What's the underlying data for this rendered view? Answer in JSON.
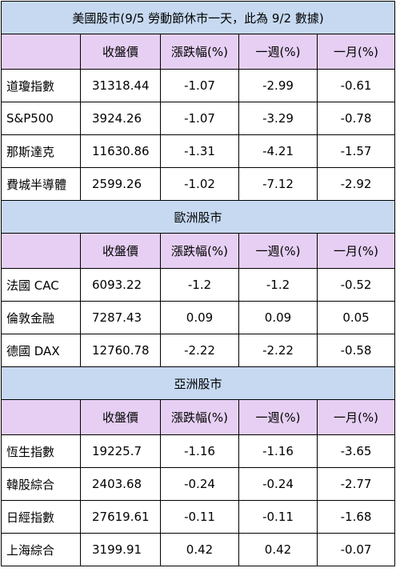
{
  "headers": [
    "",
    "收盤價",
    "漲跌幅(%)",
    "一週(%)",
    "一月(%)"
  ],
  "sections": [
    {
      "title": "美國股市(9/5 勞動節休市一天，此為 9/2 數據)",
      "rows": [
        {
          "name": "道瓊指數",
          "close": "31318.44",
          "change": "-1.07",
          "week": "-2.99",
          "month": "-0.61"
        },
        {
          "name": "S&P500",
          "close": "3924.26",
          "change": "-1.07",
          "week": "-3.29",
          "month": "-0.78"
        },
        {
          "name": "那斯達克",
          "close": "11630.86",
          "change": "-1.31",
          "week": "-4.21",
          "month": "-1.57"
        },
        {
          "name": "費城半導體",
          "close": "2599.26",
          "change": "-1.02",
          "week": "-7.12",
          "month": "-2.92"
        }
      ]
    },
    {
      "title": "歐洲股市",
      "rows": [
        {
          "name": "法國 CAC",
          "close": "6093.22",
          "change": "-1.2",
          "week": "-1.2",
          "month": "-0.52"
        },
        {
          "name": "倫敦金融",
          "close": "7287.43",
          "change": "0.09",
          "week": "0.09",
          "month": "0.05"
        },
        {
          "name": "德國 DAX",
          "close": "12760.78",
          "change": "-2.22",
          "week": "-2.22",
          "month": "-0.58"
        }
      ]
    },
    {
      "title": "亞洲股市",
      "rows": [
        {
          "name": "恆生指數",
          "close": "19225.7",
          "change": "-1.16",
          "week": "-1.16",
          "month": "-3.65"
        },
        {
          "name": "韓股綜合",
          "close": "2403.68",
          "change": "-0.24",
          "week": "-0.24",
          "month": "-2.77"
        },
        {
          "name": "日經指數",
          "close": "27619.61",
          "change": "-0.11",
          "week": "-0.11",
          "month": "-1.68"
        },
        {
          "name": "上海綜合",
          "close": "3199.91",
          "change": "0.42",
          "week": "0.42",
          "month": "-0.07"
        }
      ]
    }
  ]
}
